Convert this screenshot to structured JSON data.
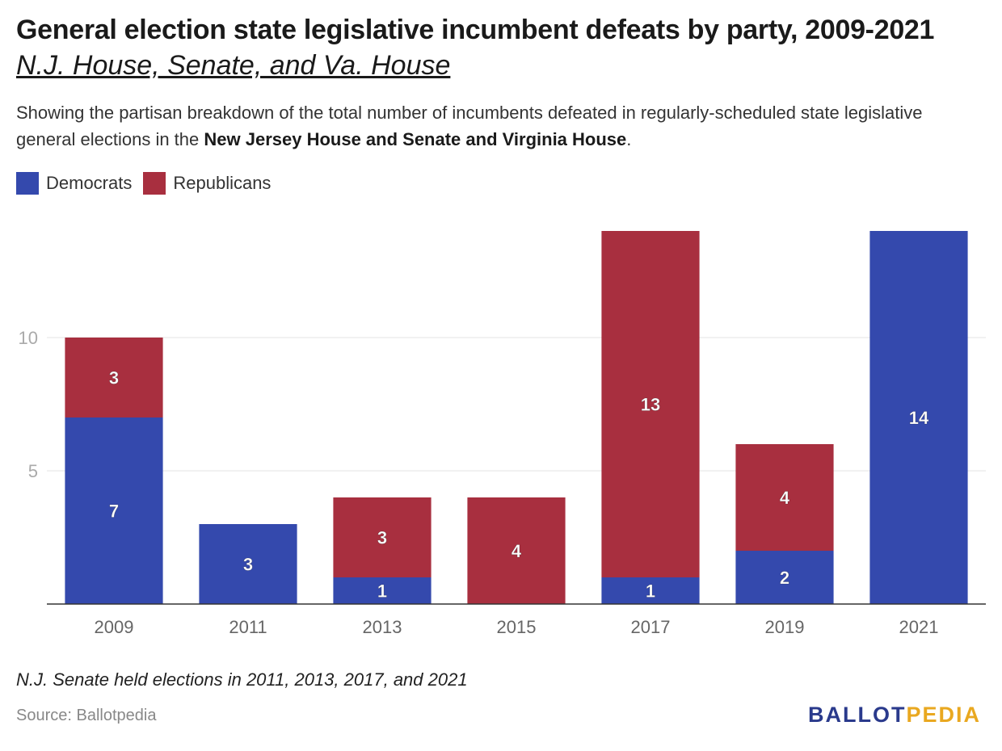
{
  "title": "General election state legislative incumbent defeats by party, 2009-2021",
  "subtitle": "N.J. House, Senate, and Va. House",
  "description": {
    "text_before": "Showing the partisan breakdown of the total number of incumbents defeated in regularly-scheduled state legislative general elections in the ",
    "bold": "New Jersey House and Senate and Virginia House",
    "text_after": "."
  },
  "colors": {
    "democrats": "#3449ad",
    "republicans": "#a82f3f",
    "logo_blue": "#2a3a8c",
    "logo_gold": "#e9a820"
  },
  "chart_data": {
    "type": "bar",
    "stacked": true,
    "categories": [
      "2009",
      "2011",
      "2013",
      "2015",
      "2017",
      "2019",
      "2021"
    ],
    "series": [
      {
        "name": "Democrats",
        "values": [
          7,
          3,
          1,
          0,
          1,
          2,
          14
        ]
      },
      {
        "name": "Republicans",
        "values": [
          3,
          0,
          3,
          4,
          13,
          4,
          0
        ]
      }
    ],
    "y_ticks": [
      5,
      10
    ],
    "ylim": [
      0,
      14
    ],
    "grid": true,
    "legend_position": "top-left"
  },
  "note": "N.J. Senate held elections in 2011, 2013, 2017, and 2021",
  "source": "Source: Ballotpedia",
  "logo": {
    "part1": "BALLOT",
    "part2": "PEDIA"
  }
}
